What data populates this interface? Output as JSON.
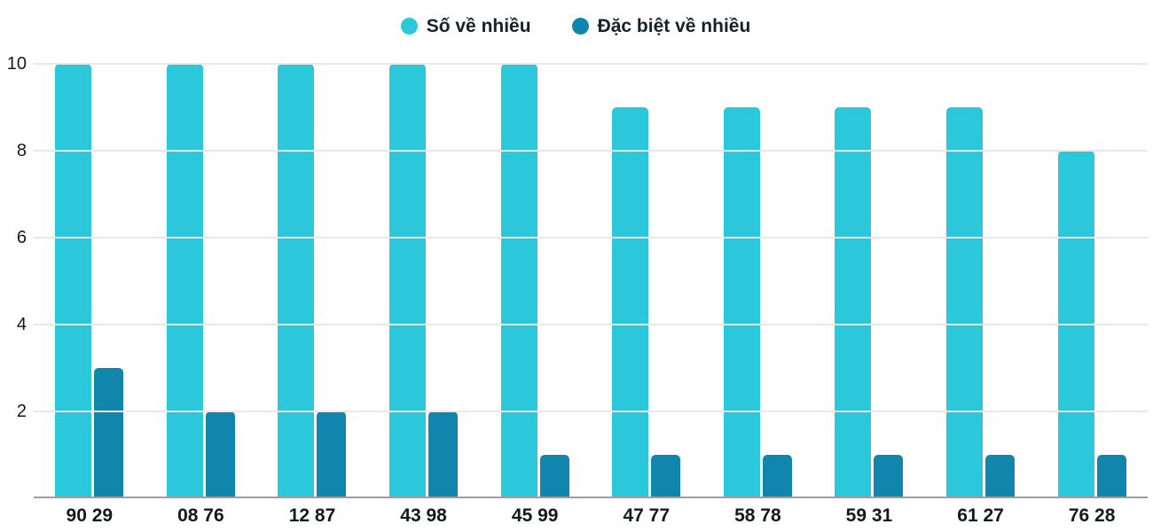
{
  "chart_data": {
    "type": "bar",
    "title": "",
    "categories": [
      "90 29",
      "08 76",
      "12 87",
      "43 98",
      "45 99",
      "47 77",
      "58 78",
      "59 31",
      "61 27",
      "76 28"
    ],
    "series": [
      {
        "name": "Số về nhiều",
        "color": "#2bc8dc",
        "values": [
          10,
          10,
          10,
          10,
          10,
          9,
          9,
          9,
          9,
          8
        ]
      },
      {
        "name": "Đặc biệt về nhiều",
        "color": "#1186ad",
        "values": [
          3,
          2,
          2,
          2,
          1,
          1,
          1,
          1,
          1,
          1
        ]
      }
    ],
    "ylim": [
      0,
      10
    ],
    "yticks": [
      2,
      4,
      6,
      8,
      10
    ],
    "grid": true,
    "legend_position": "top-center"
  }
}
